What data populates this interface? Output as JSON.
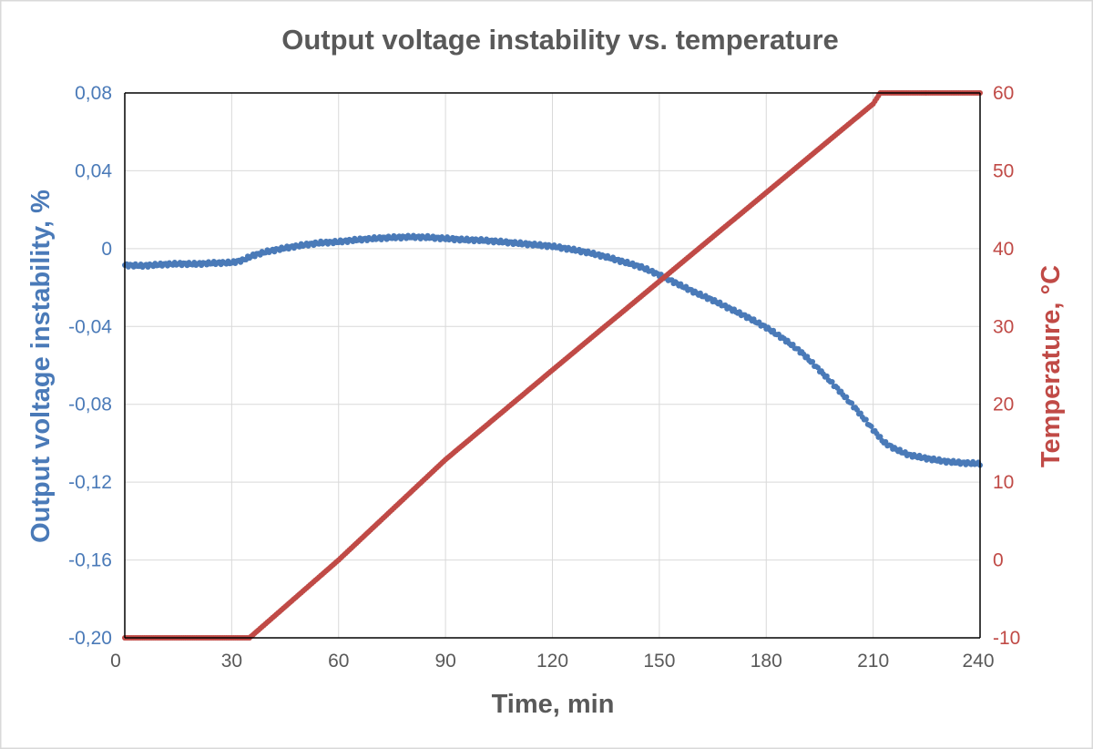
{
  "chart_data": {
    "type": "scatter",
    "title": "Output voltage instability vs. temperature",
    "xlabel": "Time, min",
    "ylabel_left": "Output voltage instability, %",
    "ylabel_right": "Temperature, °C",
    "xlim": [
      0,
      240
    ],
    "ylim_left": [
      -0.2,
      0.08
    ],
    "ylim_right": [
      -10,
      60
    ],
    "x_ticks": [
      "0",
      "30",
      "60",
      "90",
      "120",
      "150",
      "180",
      "210",
      "240"
    ],
    "y_left_ticks": [
      "0,08",
      "0,04",
      "0",
      "-0,04",
      "-0,08",
      "-0,12",
      "-0,16",
      "-0,20"
    ],
    "y_right_ticks": [
      "60",
      "50",
      "40",
      "30",
      "20",
      "10",
      "0",
      "-10"
    ],
    "grid": true,
    "colors": {
      "instability": "#4a7ab8",
      "temperature": "#c04a46",
      "text": "#595959",
      "grid": "#d9d9d9",
      "axis": "#000000"
    },
    "series": [
      {
        "name": "Output voltage instability",
        "axis": "left",
        "x": [
          0,
          5,
          10,
          15,
          20,
          25,
          30,
          33,
          36,
          40,
          45,
          50,
          55,
          60,
          65,
          70,
          75,
          80,
          85,
          90,
          95,
          100,
          105,
          110,
          115,
          120,
          125,
          130,
          135,
          140,
          145,
          150,
          155,
          160,
          165,
          170,
          175,
          180,
          185,
          190,
          195,
          200,
          205,
          210,
          213,
          216,
          220,
          225,
          230,
          235,
          240
        ],
        "values": [
          -0.0085,
          -0.0088,
          -0.0082,
          -0.0078,
          -0.0079,
          -0.0074,
          -0.0072,
          -0.006,
          -0.0035,
          -0.0015,
          0.0003,
          0.0018,
          0.003,
          0.0035,
          0.0045,
          0.0052,
          0.0057,
          0.006,
          0.0058,
          0.0052,
          0.0046,
          0.0043,
          0.0036,
          0.0028,
          0.002,
          0.0012,
          -0.0003,
          -0.002,
          -0.0042,
          -0.0068,
          -0.0095,
          -0.0135,
          -0.018,
          -0.0225,
          -0.0265,
          -0.031,
          -0.0355,
          -0.0405,
          -0.0465,
          -0.0535,
          -0.0625,
          -0.072,
          -0.082,
          -0.093,
          -0.0995,
          -0.1028,
          -0.106,
          -0.1078,
          -0.1093,
          -0.1101,
          -0.1105
        ]
      },
      {
        "name": "Temperature",
        "axis": "right",
        "x": [
          0,
          5,
          10,
          15,
          20,
          25,
          30,
          35,
          60,
          90,
          120,
          150,
          180,
          210,
          212,
          220,
          230,
          240
        ],
        "values": [
          -10,
          -10,
          -10,
          -10,
          -10,
          -10,
          -10,
          -10,
          0,
          12.9,
          24.4,
          35.8,
          47.2,
          58.6,
          60,
          60,
          60,
          60
        ]
      }
    ]
  }
}
